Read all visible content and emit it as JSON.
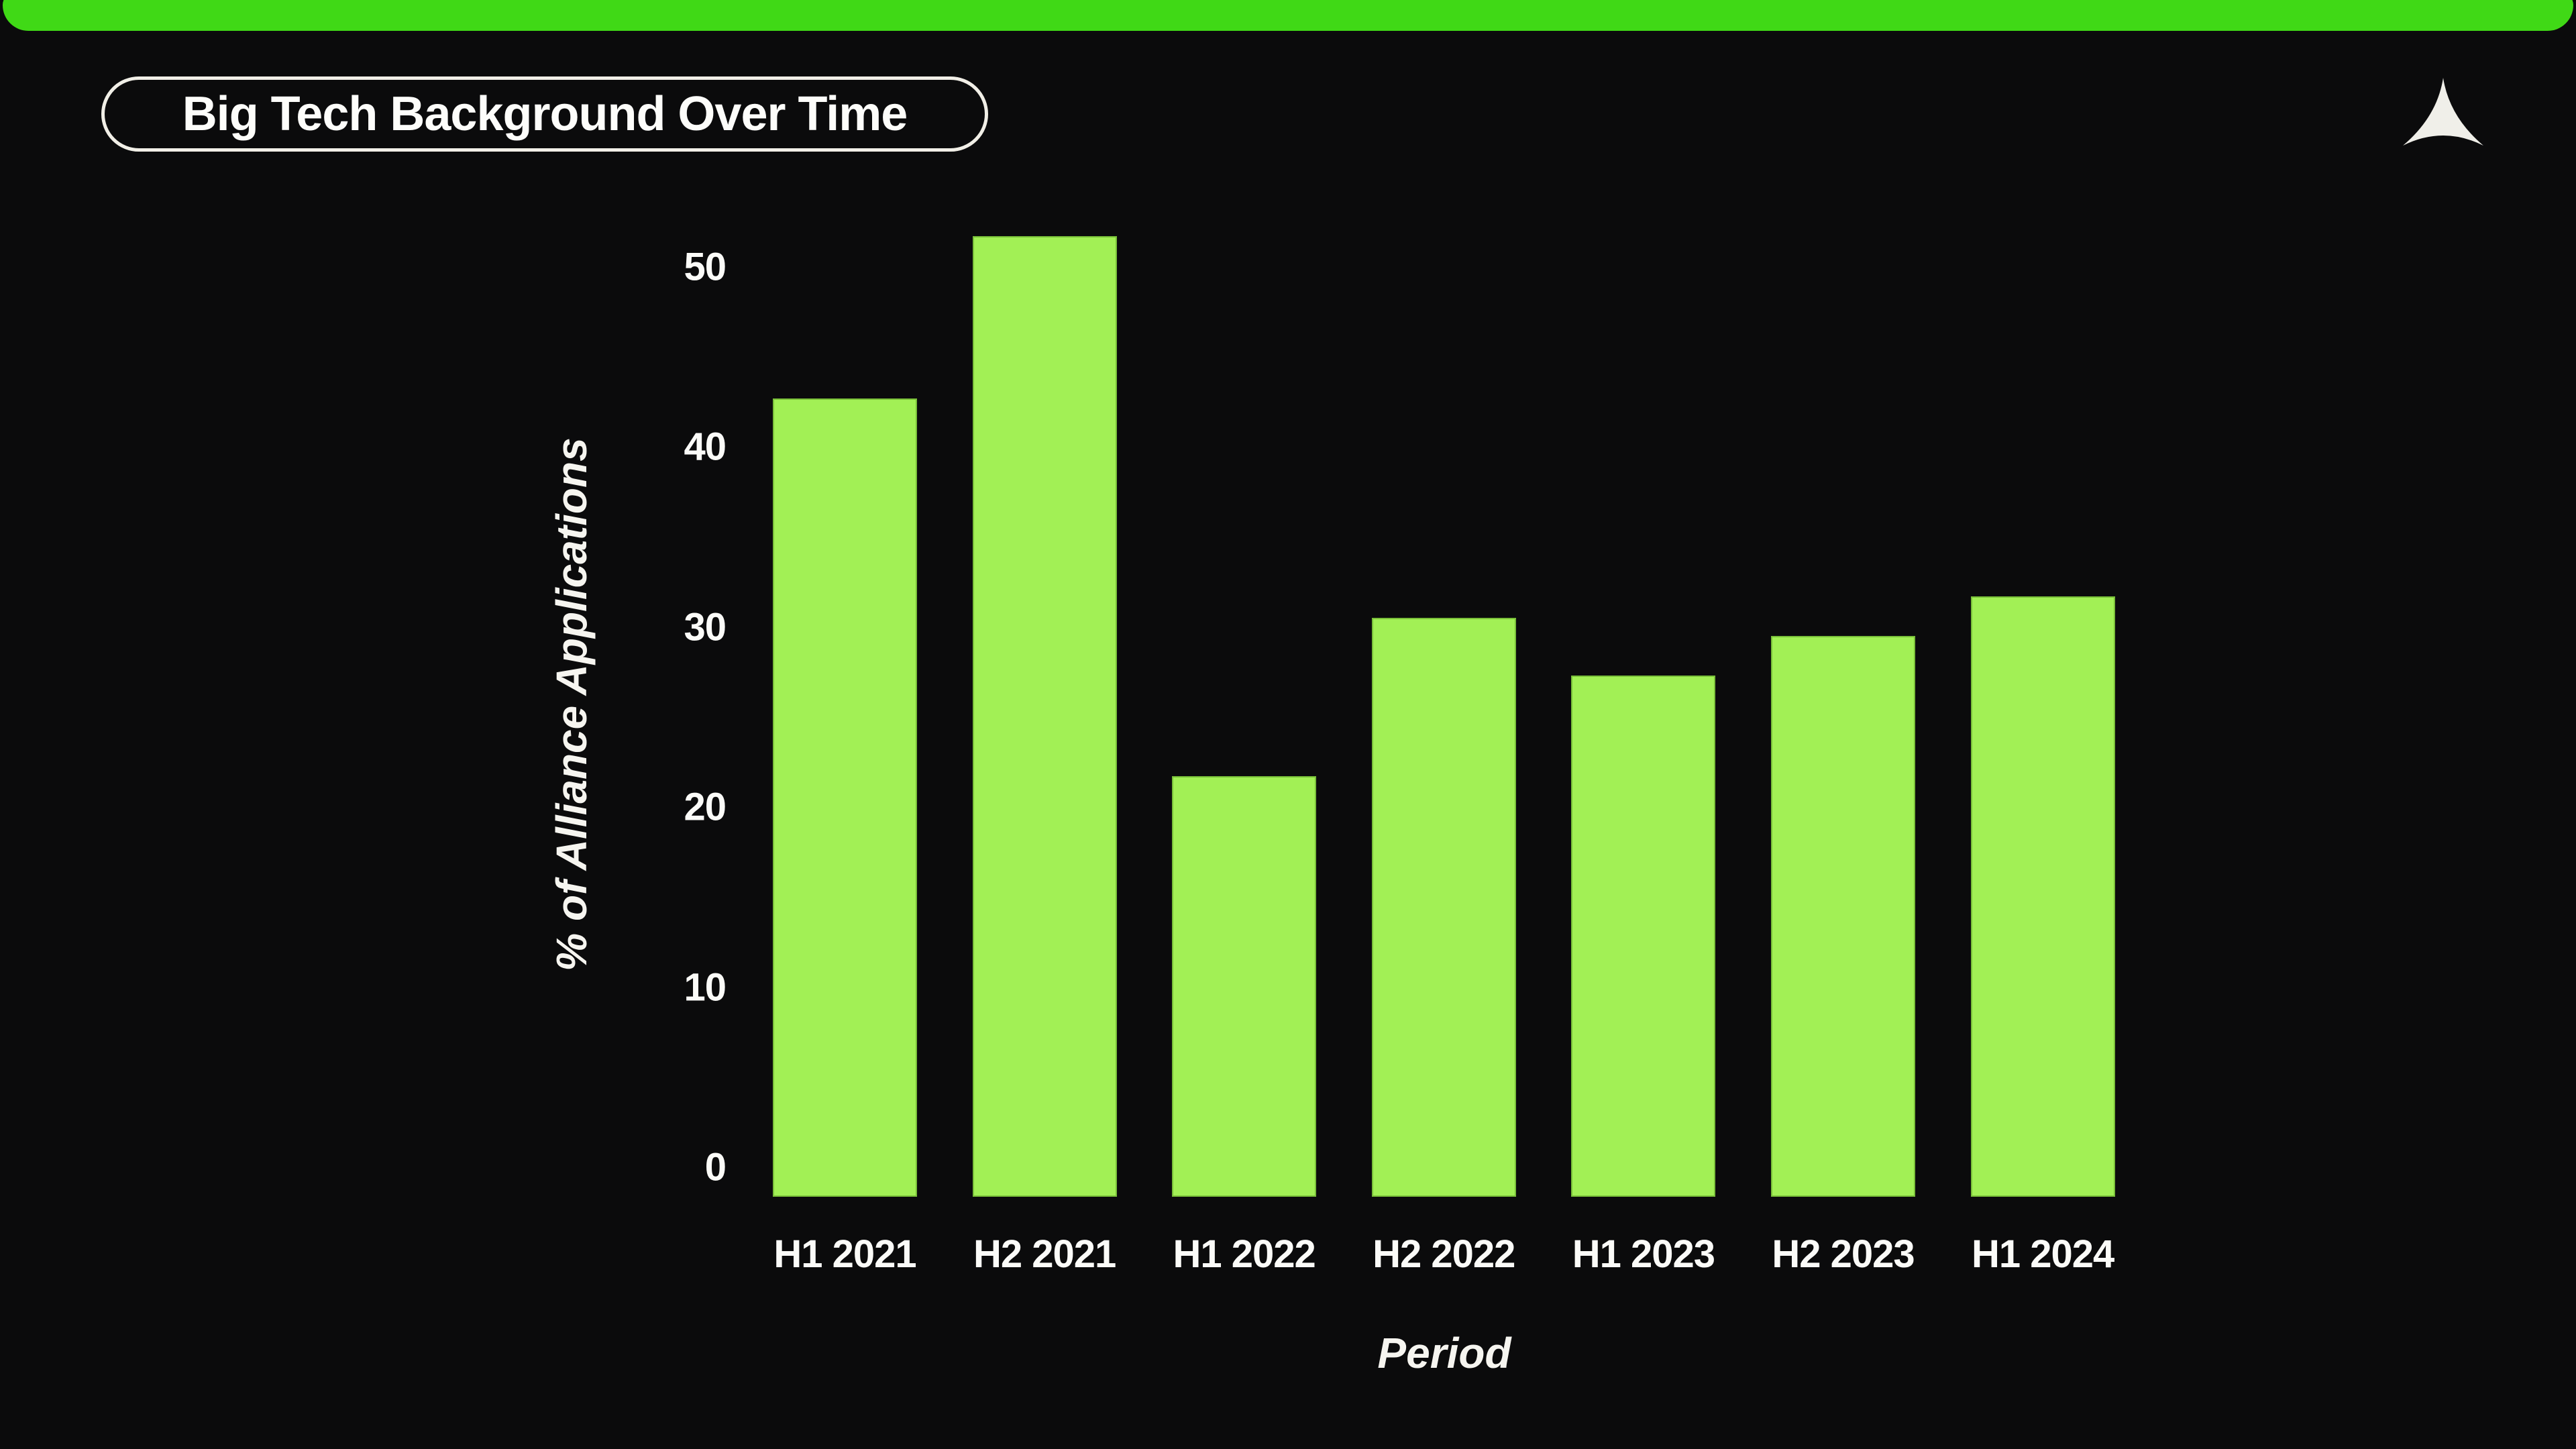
{
  "page": {
    "title_pill": "Big Tech Background Over Time",
    "logo": "alliance-concave-triangle-logo"
  },
  "colors": {
    "background": "#0b0b0c",
    "header_green": "#40d916",
    "bar_green": "#a2f055",
    "pill_border": "#f1efe7",
    "text": "#fbfbf8"
  },
  "chart_data": {
    "type": "bar",
    "title": "Big Tech Background Over Time",
    "categories": [
      "H1 2021",
      "H2 2021",
      "H1 2022",
      "H2 2022",
      "H1 2023",
      "H2 2023",
      "H1 2024"
    ],
    "values": [
      42.7,
      51.7,
      21.7,
      30.5,
      27.3,
      29.5,
      31.7
    ],
    "xlabel": "Period",
    "ylabel": "% of Alliance Applications",
    "yticks": [
      0,
      10,
      20,
      30,
      40,
      50
    ],
    "ylim": [
      0,
      53
    ],
    "grid": false,
    "legend_position": "none",
    "bar_color": "#a2f055",
    "background_color": "#0b0b0c"
  }
}
